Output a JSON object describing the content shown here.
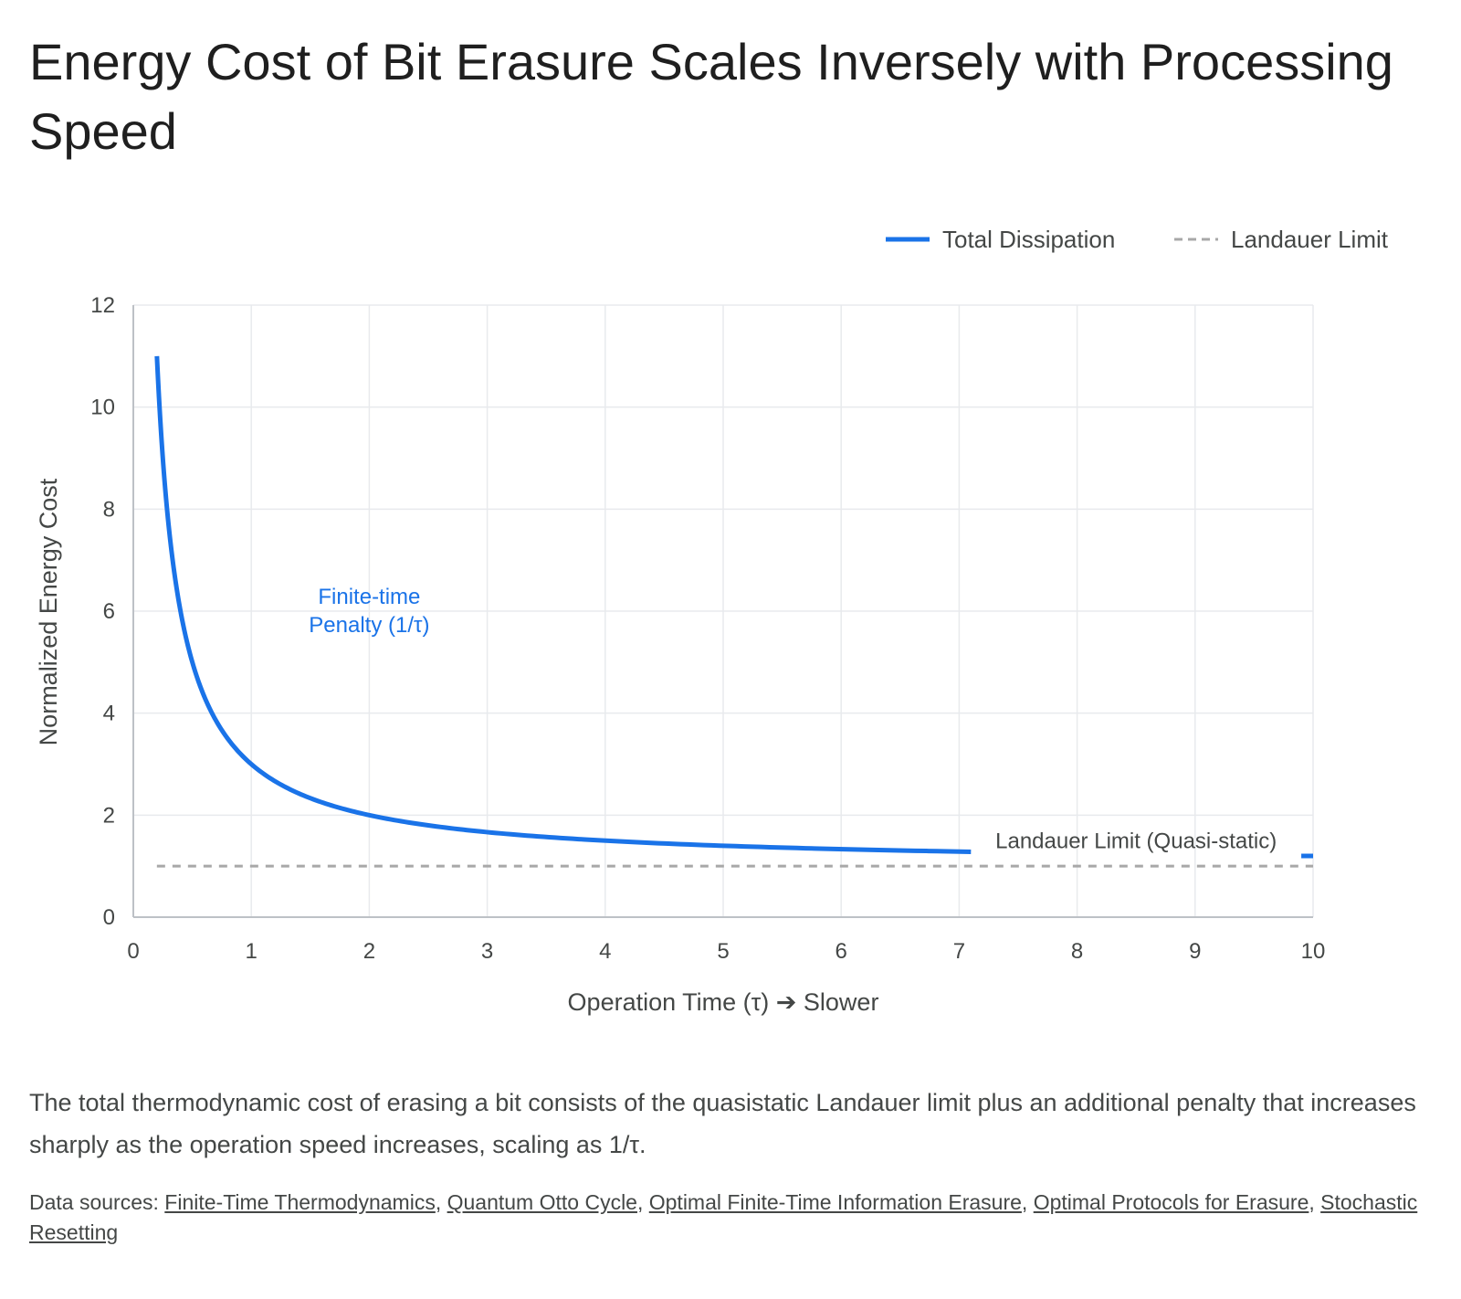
{
  "title": "Energy Cost of Bit Erasure Scales Inversely with Processing Speed",
  "caption": "The total thermodynamic cost of erasing a bit consists of the quasistatic Landauer limit plus an additional penalty that increases sharply as the operation speed increases, scaling as 1/τ.",
  "sources": {
    "label": "Data sources:",
    "links": [
      "Finite-Time Thermodynamics",
      "Quantum Otto Cycle",
      "Optimal Finite-Time Information Erasure",
      "Optimal Protocols for Erasure",
      "Stochastic Resetting"
    ]
  },
  "colors": {
    "dissipation": "#1a73e8",
    "landauer": "#a8a8a8",
    "grid": "#e8eaed",
    "axis_text": "#444746"
  },
  "chart_data": {
    "type": "line",
    "xlabel": "Operation Time (τ) ➔ Slower",
    "ylabel": "Normalized Energy Cost",
    "xlim": [
      0,
      10
    ],
    "ylim": [
      0,
      12
    ],
    "x_ticks": [
      0,
      1,
      2,
      3,
      4,
      5,
      6,
      7,
      8,
      9,
      10
    ],
    "y_ticks": [
      0,
      2,
      4,
      6,
      8,
      10,
      12
    ],
    "grid": true,
    "legend_position": "top-right",
    "series": [
      {
        "name": "Total Dissipation",
        "style": "solid",
        "x": [
          0.2,
          0.25,
          0.3,
          0.4,
          0.5,
          0.6,
          0.75,
          1,
          1.25,
          1.5,
          2,
          2.5,
          3,
          3.5,
          4,
          4.5,
          5,
          5.5,
          6,
          6.5,
          7,
          7.1
        ],
        "y": [
          11,
          9,
          7.67,
          6,
          5,
          4.33,
          3.67,
          3,
          2.6,
          2.33,
          2,
          1.8,
          1.67,
          1.57,
          1.5,
          1.44,
          1.4,
          1.36,
          1.33,
          1.31,
          1.29,
          1.28
        ],
        "x2": [
          9.9,
          10
        ],
        "y2": [
          1.2,
          1.2
        ]
      },
      {
        "name": "Landauer Limit",
        "style": "dashed",
        "x": [
          0.2,
          10
        ],
        "y": [
          1,
          1
        ]
      }
    ],
    "annotations": [
      {
        "text_lines": [
          "Finite-time",
          "Penalty (1/τ)"
        ],
        "x": 2,
        "y": 6,
        "color": "#1a73e8"
      },
      {
        "text": "Landauer Limit (Quasi-static)",
        "x": 8.5,
        "y": 1.5,
        "color": "#444746"
      }
    ]
  }
}
